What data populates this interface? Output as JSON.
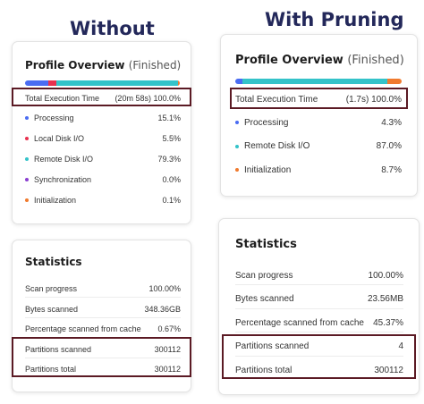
{
  "headings": {
    "without": "Without",
    "with_pruning": "With Pruning"
  },
  "colors": {
    "processing": "#4a6cf2",
    "local_disk": "#e8314f",
    "remote_disk": "#34c3c9",
    "synchronization": "#8b3fd1",
    "initialization": "#f07a2e",
    "highlight": "#5b1a24"
  },
  "without": {
    "profile": {
      "title": "Profile Overview",
      "status": "(Finished)",
      "total_label": "Total Execution Time",
      "total_time": "(20m 58s)",
      "total_pct": "100.0%",
      "breakdown": [
        {
          "label": "Processing",
          "pct": "15.1%",
          "share": 15.1,
          "color": "processing"
        },
        {
          "label": "Local Disk I/O",
          "pct": "5.5%",
          "share": 5.5,
          "color": "local_disk"
        },
        {
          "label": "Remote Disk I/O",
          "pct": "79.3%",
          "share": 79.3,
          "color": "remote_disk"
        },
        {
          "label": "Synchronization",
          "pct": "0.0%",
          "share": 0.0,
          "color": "synchronization"
        },
        {
          "label": "Initialization",
          "pct": "0.1%",
          "share": 0.1,
          "color": "initialization"
        }
      ]
    },
    "statistics": {
      "title": "Statistics",
      "rows": [
        {
          "label": "Scan progress",
          "value": "100.00%"
        },
        {
          "label": "Bytes scanned",
          "value": "348.36GB"
        },
        {
          "label": "Percentage scanned from cache",
          "value": "0.67%"
        },
        {
          "label": "Partitions scanned",
          "value": "300112"
        },
        {
          "label": "Partitions total",
          "value": "300112"
        }
      ]
    }
  },
  "with_pruning": {
    "profile": {
      "title": "Profile Overview",
      "status": "(Finished)",
      "total_label": "Total Execution Time",
      "total_time": "(1.7s)",
      "total_pct": "100.0%",
      "breakdown": [
        {
          "label": "Processing",
          "pct": "4.3%",
          "share": 4.3,
          "color": "processing"
        },
        {
          "label": "Remote Disk I/O",
          "pct": "87.0%",
          "share": 87.0,
          "color": "remote_disk"
        },
        {
          "label": "Initialization",
          "pct": "8.7%",
          "share": 8.7,
          "color": "initialization"
        }
      ]
    },
    "statistics": {
      "title": "Statistics",
      "rows": [
        {
          "label": "Scan progress",
          "value": "100.00%"
        },
        {
          "label": "Bytes scanned",
          "value": "23.56MB"
        },
        {
          "label": "Percentage scanned from cache",
          "value": "45.37%"
        },
        {
          "label": "Partitions scanned",
          "value": "4"
        },
        {
          "label": "Partitions total",
          "value": "300112"
        }
      ]
    }
  }
}
